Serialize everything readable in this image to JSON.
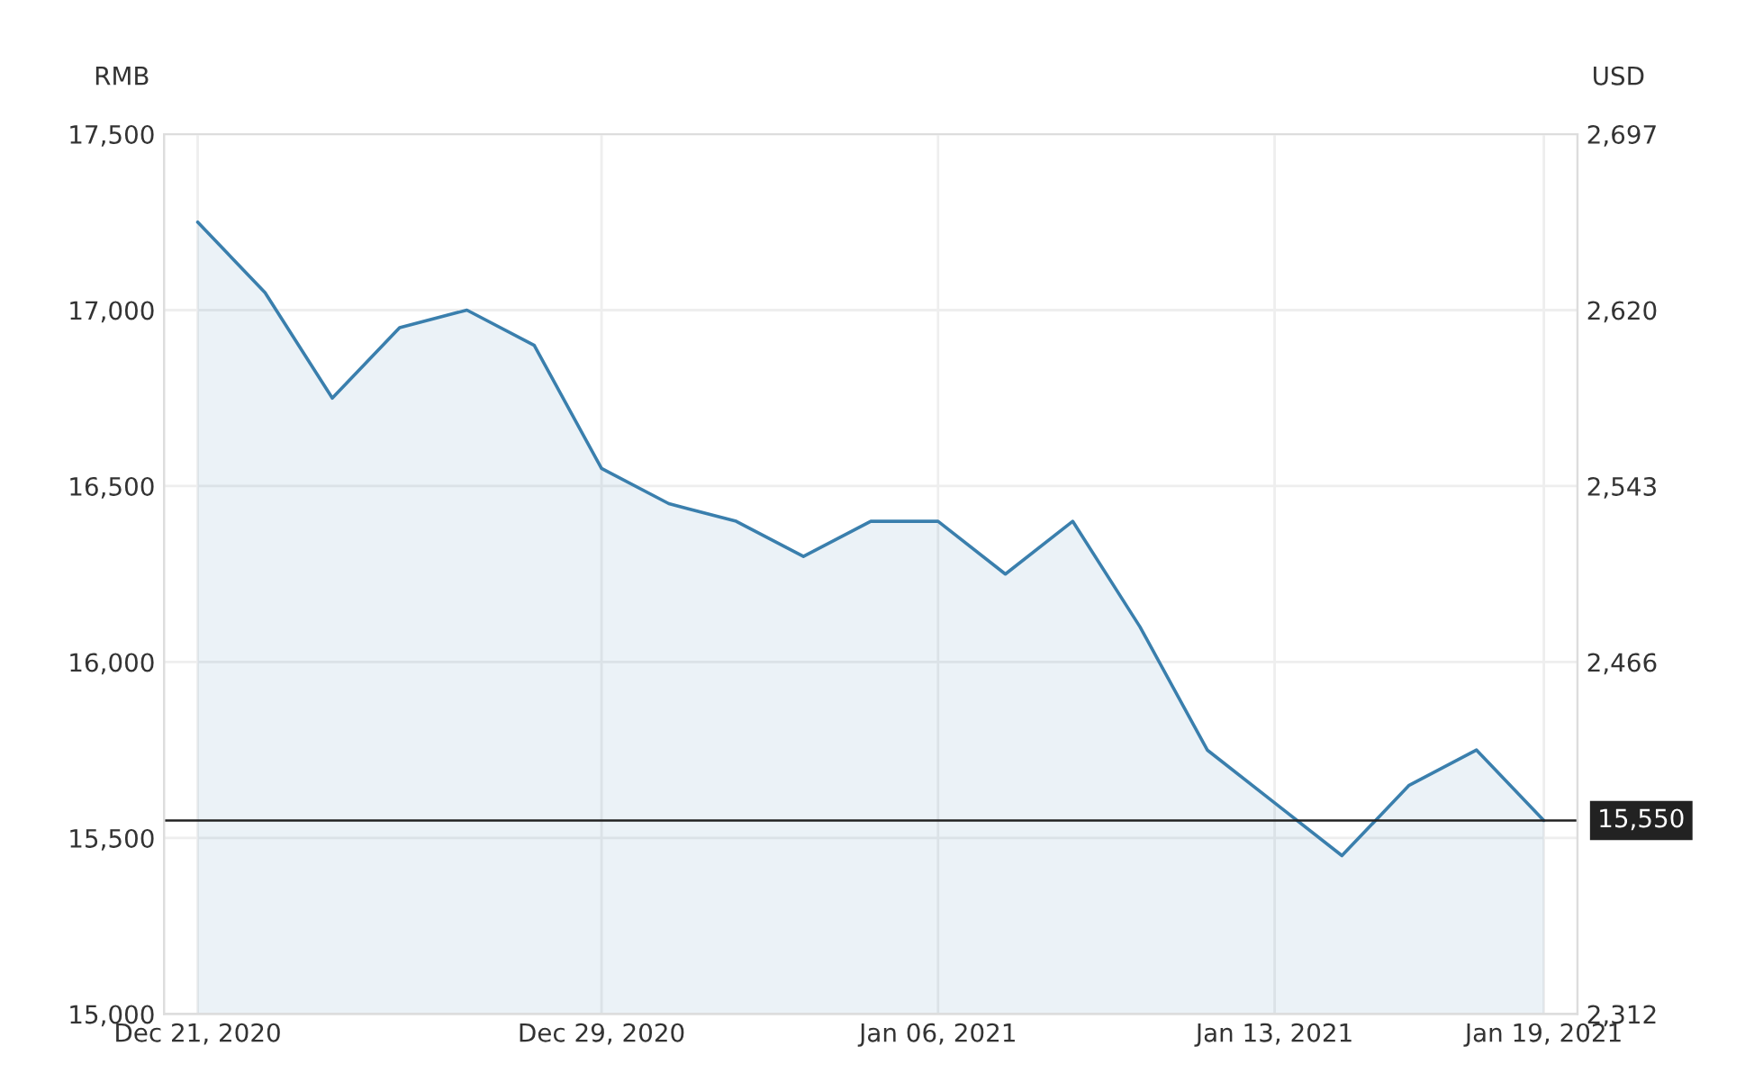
{
  "chart_data": {
    "type": "area",
    "categories": [
      "Dec 21, 2020",
      null,
      null,
      null,
      null,
      null,
      "Dec 29, 2020",
      null,
      null,
      null,
      null,
      "Jan 06, 2021",
      null,
      null,
      null,
      null,
      "Jan 13, 2021",
      null,
      null,
      null,
      "Jan 19, 2021"
    ],
    "series": [
      {
        "color": "#3a7fad",
        "values": [
          17250,
          17050,
          16750,
          16950,
          17000,
          16900,
          16550,
          16450,
          16400,
          16300,
          16400,
          16400,
          16250,
          16400,
          16100,
          15750,
          15600,
          15450,
          15650,
          15750,
          15550
        ]
      }
    ],
    "ylim": [
      15000,
      17500
    ],
    "yticks": [
      {
        "value": 15000,
        "label": "15,000"
      },
      {
        "value": 15500,
        "label": "15,500"
      },
      {
        "value": 16000,
        "label": "16,000"
      },
      {
        "value": 16500,
        "label": "16,500"
      },
      {
        "value": 17000,
        "label": "17,000"
      },
      {
        "value": 17500,
        "label": "17,500"
      }
    ],
    "y2lim": [
      2312,
      2697
    ],
    "y2ticks": [
      {
        "value": 2312,
        "label": "2,312"
      },
      {
        "value": 2466,
        "label": "2,466"
      },
      {
        "value": 2543,
        "label": "2,543"
      },
      {
        "value": 2620,
        "label": "2,620"
      },
      {
        "value": 2697,
        "label": "2,697"
      }
    ],
    "ylabel": "RMB",
    "y2label": "USD",
    "ref_lines": [
      {
        "axis": "y",
        "value": 15550,
        "label": "15,550",
        "color": "#222222"
      }
    ],
    "grid": true,
    "legend": false
  }
}
